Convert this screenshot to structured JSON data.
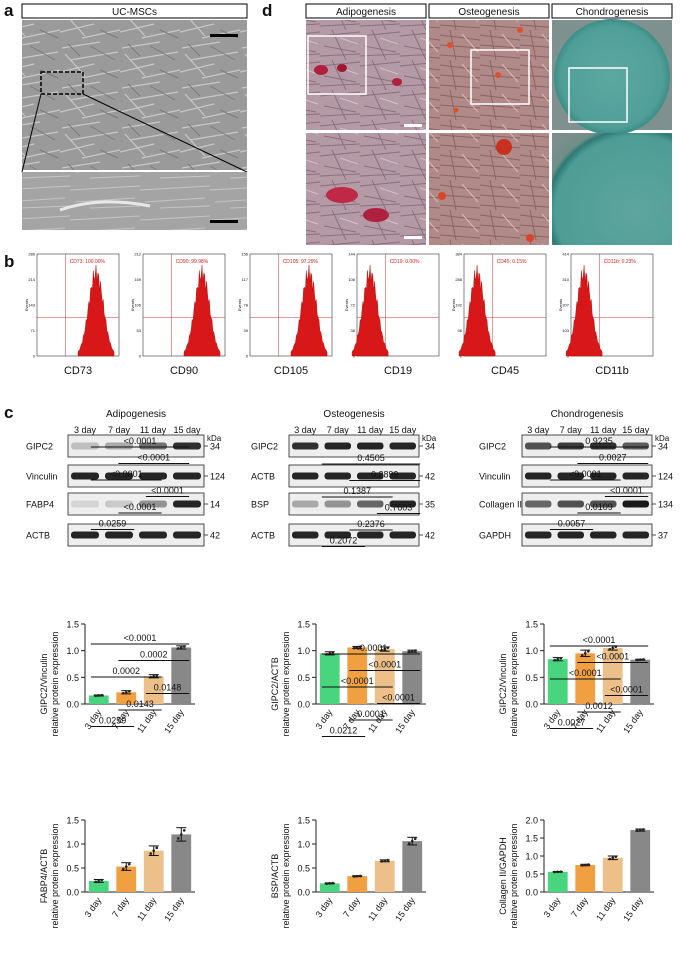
{
  "panel_labels": [
    "a",
    "b",
    "c",
    "d"
  ],
  "panel_a": {
    "title": "UC-MSCs"
  },
  "panel_c": {
    "titles": [
      "Adipogenesis",
      "Osteogenesis",
      "Chondrogenesis"
    ]
  },
  "panel_b": {
    "markers": [
      "CD73",
      "CD90",
      "CD105",
      "CD19",
      "CD45",
      "CD11b"
    ],
    "gate_labels": [
      "CD73: 100.00%",
      "CD90: 99.98%",
      "CD105: 97.29%",
      "CD19: 0.00%",
      "CD45: 0.15%",
      "CD11b: 0.23%"
    ],
    "positive": [
      true,
      true,
      true,
      false,
      false,
      false
    ],
    "ylabel": "Events",
    "yticks": [
      [
        "0",
        "71",
        "143",
        "214",
        "286"
      ],
      [
        "0",
        "53",
        "106",
        "159",
        "212"
      ],
      [
        "0",
        "39",
        "78",
        "117",
        "156"
      ],
      [
        "0",
        "36",
        "72",
        "108",
        "144"
      ],
      [
        "0",
        "96",
        "192",
        "288",
        "384"
      ],
      [
        "0",
        "103",
        "207",
        "310",
        "414"
      ]
    ]
  },
  "western": {
    "days": [
      "3 day",
      "7 day",
      "11 day",
      "15 day"
    ],
    "kda_label": "kDa",
    "blots": [
      {
        "title": "Adipogenesis",
        "rows": [
          {
            "protein": "GIPC2",
            "kda": "34",
            "intensity": [
              0.2,
              0.3,
              0.55,
              0.85
            ]
          },
          {
            "protein": "Vinculin",
            "kda": "124",
            "intensity": [
              0.9,
              0.9,
              0.9,
              0.9
            ]
          },
          {
            "protein": "FABP4",
            "kda": "14",
            "intensity": [
              0.1,
              0.15,
              0.4,
              0.9
            ]
          },
          {
            "protein": "ACTB",
            "kda": "42",
            "intensity": [
              0.9,
              0.9,
              0.9,
              0.9
            ]
          }
        ]
      },
      {
        "title": "Osteogenesis",
        "rows": [
          {
            "protein": "GIPC2",
            "kda": "34",
            "intensity": [
              0.85,
              0.9,
              0.9,
              0.9
            ]
          },
          {
            "protein": "ACTB",
            "kda": "42",
            "intensity": [
              0.9,
              0.9,
              0.9,
              0.9
            ]
          },
          {
            "protein": "BSP",
            "kda": "35",
            "intensity": [
              0.3,
              0.4,
              0.6,
              0.9
            ]
          },
          {
            "protein": "ACTB",
            "kda": "42",
            "intensity": [
              0.9,
              0.9,
              0.9,
              0.9
            ]
          }
        ]
      },
      {
        "title": "Chondrogenesis",
        "rows": [
          {
            "protein": "GIPC2",
            "kda": "34",
            "intensity": [
              0.7,
              0.8,
              0.85,
              0.65
            ]
          },
          {
            "protein": "Vinculin",
            "kda": "124",
            "intensity": [
              0.9,
              0.9,
              0.9,
              0.9
            ]
          },
          {
            "protein": "Collagen II",
            "kda": "134",
            "intensity": [
              0.6,
              0.7,
              0.7,
              0.95
            ]
          },
          {
            "protein": "GAPDH",
            "kda": "37",
            "intensity": [
              0.9,
              0.9,
              0.9,
              0.9
            ]
          }
        ]
      }
    ]
  },
  "chart_data": [
    {
      "type": "bar",
      "categories": [
        "3 day",
        "7 day",
        "11 day",
        "15 day"
      ],
      "values": [
        0.16,
        0.22,
        0.52,
        1.06
      ],
      "errors": [
        0.01,
        0.03,
        0.03,
        0.03
      ],
      "ylabel": "GIPC2/Vinculin\nrelative protein expression",
      "ylim": [
        0,
        1.5
      ],
      "yticks": [
        0.0,
        0.5,
        1.0,
        1.5
      ],
      "colors": [
        "#49d57d",
        "#f0a040",
        "#ecc088",
        "#888888"
      ],
      "comparisons": [
        {
          "a": 0,
          "b": 3,
          "p": "<0.0001"
        },
        {
          "a": 1,
          "b": 3,
          "p": "<0.0001"
        },
        {
          "a": 0,
          "b": 2,
          "p": "<0.0001"
        },
        {
          "a": 2,
          "b": 3,
          "p": "<0.0001"
        },
        {
          "a": 1,
          "b": 2,
          "p": "<0.0001"
        },
        {
          "a": 0,
          "b": 1,
          "p": "0.0259"
        }
      ]
    },
    {
      "type": "bar",
      "categories": [
        "3 day",
        "7 day",
        "11 day",
        "15 day"
      ],
      "values": [
        0.95,
        1.06,
        1.03,
        0.99
      ],
      "errors": [
        0.03,
        0.02,
        0.04,
        0.02
      ],
      "ylabel": "GIPC2/ACTB\nrelative protein expression",
      "ylim": [
        0,
        1.5
      ],
      "yticks": [
        0.0,
        0.5,
        1.0,
        1.5
      ],
      "colors": [
        "#49d57d",
        "#f0a040",
        "#ecc088",
        "#888888"
      ],
      "comparisons": [
        {
          "a": 0,
          "b": 3,
          "p": "0.4505"
        },
        {
          "a": 1,
          "b": 3,
          "p": "0.2899"
        },
        {
          "a": 0,
          "b": 2,
          "p": "0.1387"
        },
        {
          "a": 2,
          "b": 3,
          "p": "0.7603"
        },
        {
          "a": 1,
          "b": 2,
          "p": "0.2376"
        },
        {
          "a": 0,
          "b": 1,
          "p": "0.2072"
        }
      ]
    },
    {
      "type": "bar",
      "categories": [
        "3 day",
        "7 day",
        "11 day",
        "15 day"
      ],
      "values": [
        0.84,
        0.95,
        1.05,
        0.83
      ],
      "errors": [
        0.03,
        0.06,
        0.04,
        0.01
      ],
      "ylabel": "GIPC2/Vinculin\nrelative protein expression",
      "ylim": [
        0,
        1.5
      ],
      "yticks": [
        0.0,
        0.5,
        1.0,
        1.5
      ],
      "colors": [
        "#49d57d",
        "#f0a040",
        "#ecc088",
        "#888888"
      ],
      "comparisons": [
        {
          "a": 0,
          "b": 3,
          "p": "0.9235"
        },
        {
          "a": 1,
          "b": 3,
          "p": "0.0027"
        },
        {
          "a": 0,
          "b": 2,
          "p": "<0.0001"
        },
        {
          "a": 2,
          "b": 3,
          "p": "<0.0001"
        },
        {
          "a": 1,
          "b": 2,
          "p": "0.0109"
        },
        {
          "a": 0,
          "b": 1,
          "p": "0.0057"
        }
      ]
    },
    {
      "type": "bar",
      "categories": [
        "3 day",
        "7 day",
        "11 day",
        "15 day"
      ],
      "values": [
        0.23,
        0.53,
        0.86,
        1.2
      ],
      "errors": [
        0.03,
        0.08,
        0.1,
        0.14
      ],
      "ylabel": "FABP4/ACTB\nrelative protein expression",
      "ylim": [
        0,
        1.5
      ],
      "yticks": [
        0.0,
        0.5,
        1.0,
        1.5
      ],
      "colors": [
        "#49d57d",
        "#f0a040",
        "#ecc088",
        "#888888"
      ],
      "comparisons": [
        {
          "a": 0,
          "b": 3,
          "p": "<0.0001"
        },
        {
          "a": 1,
          "b": 3,
          "p": "0.0002"
        },
        {
          "a": 0,
          "b": 2,
          "p": "0.0002"
        },
        {
          "a": 2,
          "b": 3,
          "p": "0.0148"
        },
        {
          "a": 1,
          "b": 2,
          "p": "0.0143"
        },
        {
          "a": 0,
          "b": 1,
          "p": "0.0259"
        }
      ]
    },
    {
      "type": "bar",
      "categories": [
        "3 day",
        "7 day",
        "11 day",
        "15 day"
      ],
      "values": [
        0.18,
        0.33,
        0.65,
        1.06
      ],
      "errors": [
        0.01,
        0.01,
        0.02,
        0.08
      ],
      "ylabel": "BSP/ACTB\nrelative protein expression",
      "ylim": [
        0,
        1.5
      ],
      "yticks": [
        0.0,
        0.5,
        1.0,
        1.5
      ],
      "colors": [
        "#49d57d",
        "#f0a040",
        "#ecc088",
        "#888888"
      ],
      "comparisons": [
        {
          "a": 0,
          "b": 3,
          "p": "<0.0001"
        },
        {
          "a": 1,
          "b": 3,
          "p": "<0.0001"
        },
        {
          "a": 0,
          "b": 2,
          "p": "<0.0001"
        },
        {
          "a": 2,
          "b": 3,
          "p": "<0.0001"
        },
        {
          "a": 1,
          "b": 2,
          "p": "0.0001"
        },
        {
          "a": 0,
          "b": 1,
          "p": "0.0212"
        }
      ]
    },
    {
      "type": "bar",
      "categories": [
        "3 day",
        "7 day",
        "11 day",
        "15 day"
      ],
      "values": [
        0.56,
        0.75,
        0.95,
        1.72
      ],
      "errors": [
        0.01,
        0.02,
        0.05,
        0.03
      ],
      "ylabel": "Collagen II/GAPDH\nrelative protein expression",
      "ylim": [
        0,
        2.0
      ],
      "yticks": [
        0.0,
        0.5,
        1.0,
        1.5,
        2.0
      ],
      "colors": [
        "#49d57d",
        "#f0a040",
        "#ecc088",
        "#888888"
      ],
      "comparisons": [
        {
          "a": 0,
          "b": 3,
          "p": "<0.0001"
        },
        {
          "a": 1,
          "b": 3,
          "p": "<0.0001"
        },
        {
          "a": 0,
          "b": 2,
          "p": "<0.0001"
        },
        {
          "a": 2,
          "b": 3,
          "p": "<0.0001"
        },
        {
          "a": 1,
          "b": 2,
          "p": "0.0012"
        },
        {
          "a": 0,
          "b": 1,
          "p": "0.0027"
        }
      ]
    }
  ]
}
